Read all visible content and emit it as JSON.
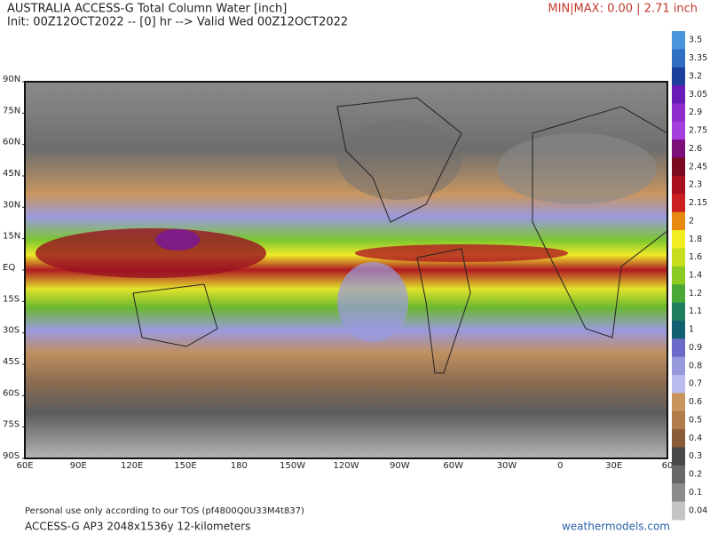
{
  "header": {
    "title": "AUSTRALIA ACCESS-G Total Column Water [inch]",
    "subtitle": "Init: 00Z12OCT2022 -- [0] hr --> Valid Wed 00Z12OCT2022",
    "minmax": "MIN|MAX: 0.00 | 2.71 inch"
  },
  "map": {
    "lat_labels": [
      "90N",
      "75N",
      "60N",
      "45N",
      "30N",
      "15N",
      "EQ",
      "15S",
      "30S",
      "45S",
      "60S",
      "75S",
      "90S"
    ],
    "lon_labels": [
      "60E",
      "90E",
      "120E",
      "150E",
      "180",
      "150W",
      "120W",
      "90W",
      "60W",
      "30W",
      "0",
      "30E",
      "60"
    ]
  },
  "colorbar": {
    "labels": [
      3.5,
      3.35,
      3.2,
      3.05,
      2.9,
      2.75,
      2.6,
      2.45,
      2.3,
      2.15,
      2,
      1.8,
      1.6,
      1.4,
      1.2,
      1.1,
      1,
      0.9,
      0.8,
      0.7,
      0.6,
      0.5,
      0.4,
      0.3,
      0.2,
      0.1,
      0.04
    ],
    "colors": [
      "#4a94dc",
      "#2f6fc4",
      "#1d3f9e",
      "#6a1cb8",
      "#8e2ccc",
      "#a63ede",
      "#7c0f78",
      "#7a0a1e",
      "#a8101e",
      "#cc2020",
      "#e88a10",
      "#f2ee22",
      "#c6de1e",
      "#8ccc22",
      "#4aa836",
      "#1e8060",
      "#115f70",
      "#6a6ac8",
      "#9898dc",
      "#bcbcee",
      "#c8965c",
      "#b07c4a",
      "#8a5c38",
      "#484848",
      "#686868",
      "#8c8c8c",
      "#c4c4c4"
    ]
  },
  "footer": {
    "tos": "Personal use only according to our TOS (pf4800Q0U33M4t837)",
    "model": "ACCESS-G AP3 2048x1536y 12-kilometers",
    "site": "weathermodels.com"
  }
}
